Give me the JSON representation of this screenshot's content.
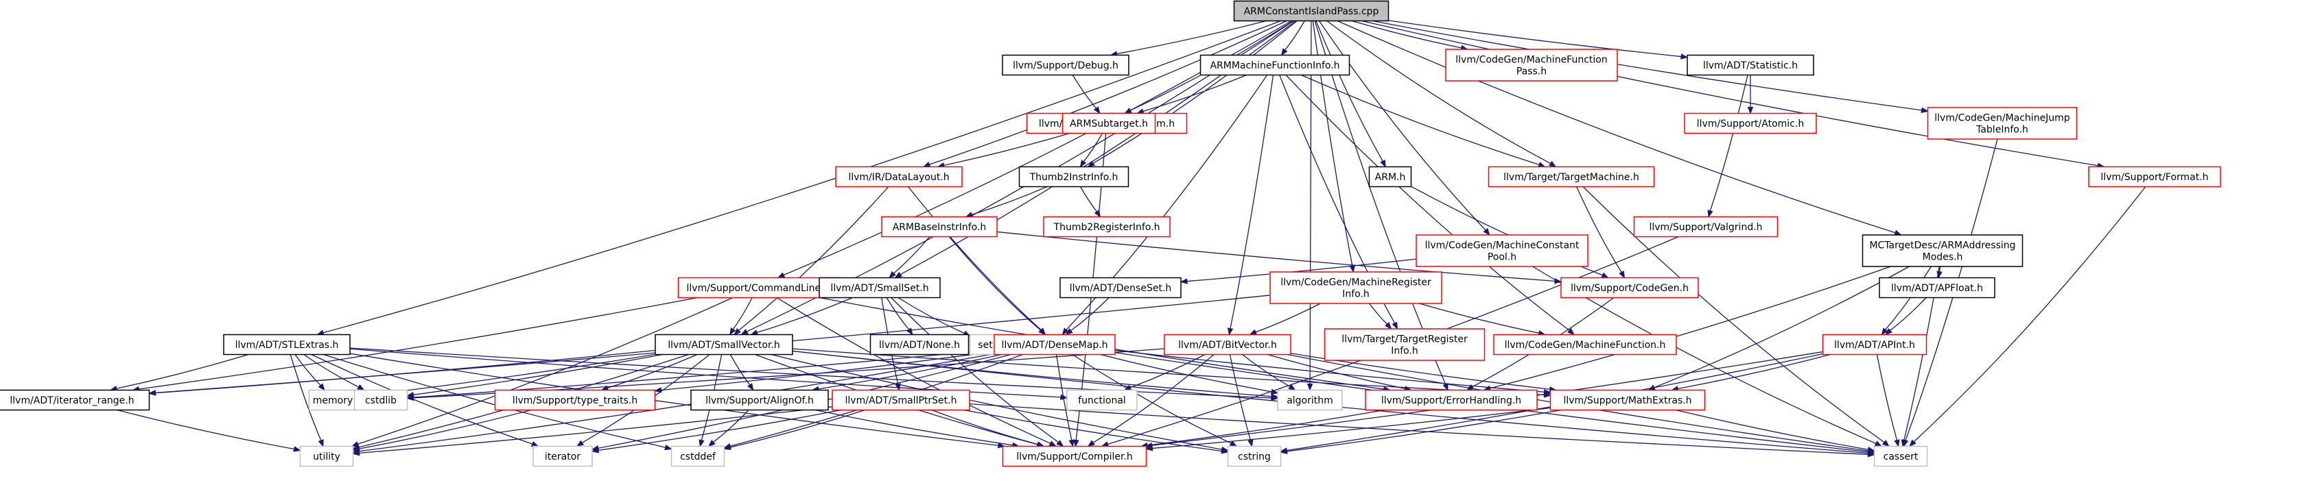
{
  "graph": {
    "colors": {
      "root_fill": "#bfbfbf",
      "header_border": "#000000",
      "missing_border": "#ff0000",
      "plain_border": "#bfbfbf",
      "edge": "#191970"
    },
    "nodes": [
      {
        "id": "root",
        "lines": [
          "ARMConstantIslandPass.cpp"
        ],
        "kind": "root"
      },
      {
        "id": "debug",
        "lines": [
          "llvm/Support/Debug.h"
        ],
        "kind": "header"
      },
      {
        "id": "armmfi",
        "lines": [
          "ARMMachineFunctionInfo.h"
        ],
        "kind": "header"
      },
      {
        "id": "mfpass",
        "lines": [
          "llvm/CodeGen/MachineFunction",
          "Pass.h"
        ],
        "kind": "missing"
      },
      {
        "id": "statistic",
        "lines": [
          "llvm/ADT/Statistic.h"
        ],
        "kind": "header"
      },
      {
        "id": "rawos",
        "lines": [
          "llvm/Support/raw_ostream.h"
        ],
        "kind": "missing"
      },
      {
        "id": "armsub",
        "lines": [
          "ARMSubtarget.h"
        ],
        "kind": "missing"
      },
      {
        "id": "atomic",
        "lines": [
          "llvm/Support/Atomic.h"
        ],
        "kind": "missing"
      },
      {
        "id": "mjti",
        "lines": [
          "llvm/CodeGen/MachineJump",
          "TableInfo.h"
        ],
        "kind": "missing"
      },
      {
        "id": "format",
        "lines": [
          "llvm/Support/Format.h"
        ],
        "kind": "missing"
      },
      {
        "id": "datalayout",
        "lines": [
          "llvm/IR/DataLayout.h"
        ],
        "kind": "missing"
      },
      {
        "id": "thumb2ii",
        "lines": [
          "Thumb2InstrInfo.h"
        ],
        "kind": "header"
      },
      {
        "id": "armh",
        "lines": [
          "ARM.h"
        ],
        "kind": "header"
      },
      {
        "id": "targetmachine",
        "lines": [
          "llvm/Target/TargetMachine.h"
        ],
        "kind": "missing"
      },
      {
        "id": "thumb2ri",
        "lines": [
          "Thumb2RegisterInfo.h"
        ],
        "kind": "missing"
      },
      {
        "id": "armbii",
        "lines": [
          "ARMBaseInstrInfo.h"
        ],
        "kind": "missing"
      },
      {
        "id": "mcpool",
        "lines": [
          "llvm/CodeGen/MachineConstant",
          "Pool.h"
        ],
        "kind": "missing"
      },
      {
        "id": "valgrind",
        "lines": [
          "llvm/Support/Valgrind.h"
        ],
        "kind": "missing"
      },
      {
        "id": "mcaddr",
        "lines": [
          "MCTargetDesc/ARMAddressing",
          "Modes.h"
        ],
        "kind": "header"
      },
      {
        "id": "cmdline",
        "lines": [
          "llvm/Support/CommandLine.h"
        ],
        "kind": "missing"
      },
      {
        "id": "smallset",
        "lines": [
          "llvm/ADT/SmallSet.h"
        ],
        "kind": "header"
      },
      {
        "id": "denseset",
        "lines": [
          "llvm/ADT/DenseSet.h"
        ],
        "kind": "header"
      },
      {
        "id": "mri",
        "lines": [
          "llvm/CodeGen/MachineRegister",
          "Info.h"
        ],
        "kind": "missing"
      },
      {
        "id": "codegen",
        "lines": [
          "llvm/Support/CodeGen.h"
        ],
        "kind": "missing"
      },
      {
        "id": "apfloat",
        "lines": [
          "llvm/ADT/APFloat.h"
        ],
        "kind": "header"
      },
      {
        "id": "stlextras",
        "lines": [
          "llvm/ADT/STLExtras.h"
        ],
        "kind": "header"
      },
      {
        "id": "smallvector",
        "lines": [
          "llvm/ADT/SmallVector.h"
        ],
        "kind": "header"
      },
      {
        "id": "none",
        "lines": [
          "llvm/ADT/None.h"
        ],
        "kind": "header"
      },
      {
        "id": "set",
        "lines": [
          "set"
        ],
        "kind": "plain"
      },
      {
        "id": "densemap",
        "lines": [
          "llvm/ADT/DenseMap.h"
        ],
        "kind": "missing"
      },
      {
        "id": "bitvector",
        "lines": [
          "llvm/ADT/BitVector.h"
        ],
        "kind": "missing"
      },
      {
        "id": "tri",
        "lines": [
          "llvm/Target/TargetRegister",
          "Info.h"
        ],
        "kind": "missing"
      },
      {
        "id": "mf",
        "lines": [
          "llvm/CodeGen/MachineFunction.h"
        ],
        "kind": "missing"
      },
      {
        "id": "apint",
        "lines": [
          "llvm/ADT/APInt.h"
        ],
        "kind": "missing"
      },
      {
        "id": "iterrange",
        "lines": [
          "llvm/ADT/iterator_range.h"
        ],
        "kind": "header"
      },
      {
        "id": "memory",
        "lines": [
          "memory"
        ],
        "kind": "plain"
      },
      {
        "id": "cstdlib",
        "lines": [
          "cstdlib"
        ],
        "kind": "plain"
      },
      {
        "id": "typetraits",
        "lines": [
          "llvm/Support/type_traits.h"
        ],
        "kind": "missing"
      },
      {
        "id": "alignof",
        "lines": [
          "llvm/Support/AlignOf.h"
        ],
        "kind": "header"
      },
      {
        "id": "smallptrset",
        "lines": [
          "llvm/ADT/SmallPtrSet.h"
        ],
        "kind": "missing"
      },
      {
        "id": "functional",
        "lines": [
          "functional"
        ],
        "kind": "plain"
      },
      {
        "id": "algorithm",
        "lines": [
          "algorithm"
        ],
        "kind": "plain"
      },
      {
        "id": "errorhandling",
        "lines": [
          "llvm/Support/ErrorHandling.h"
        ],
        "kind": "missing"
      },
      {
        "id": "mathextras",
        "lines": [
          "llvm/Support/MathExtras.h"
        ],
        "kind": "missing"
      },
      {
        "id": "utility",
        "lines": [
          "utility"
        ],
        "kind": "plain"
      },
      {
        "id": "iterator",
        "lines": [
          "iterator"
        ],
        "kind": "plain"
      },
      {
        "id": "cstddef",
        "lines": [
          "cstddef"
        ],
        "kind": "plain"
      },
      {
        "id": "compiler",
        "lines": [
          "llvm/Support/Compiler.h"
        ],
        "kind": "missing"
      },
      {
        "id": "cstring",
        "lines": [
          "cstring"
        ],
        "kind": "plain"
      },
      {
        "id": "cassert",
        "lines": [
          "cassert"
        ],
        "kind": "plain"
      }
    ],
    "edges": [
      [
        "root",
        "debug"
      ],
      [
        "root",
        "armmfi"
      ],
      [
        "root",
        "mfpass"
      ],
      [
        "root",
        "statistic"
      ],
      [
        "root",
        "rawos"
      ],
      [
        "root",
        "mjti"
      ],
      [
        "root",
        "format"
      ],
      [
        "root",
        "datalayout"
      ],
      [
        "root",
        "thumb2ii"
      ],
      [
        "root",
        "armh"
      ],
      [
        "root",
        "targetmachine"
      ],
      [
        "root",
        "mcpool"
      ],
      [
        "root",
        "mcaddr"
      ],
      [
        "root",
        "cmdline"
      ],
      [
        "root",
        "smallset"
      ],
      [
        "root",
        "mri"
      ],
      [
        "root",
        "stlextras"
      ],
      [
        "root",
        "smallvector"
      ],
      [
        "root",
        "algorithm"
      ],
      [
        "root",
        "errorhandling"
      ],
      [
        "debug",
        "rawos"
      ],
      [
        "armmfi",
        "armsub"
      ],
      [
        "armmfi",
        "targetmachine"
      ],
      [
        "armmfi",
        "densemap"
      ],
      [
        "armmfi",
        "bitvector"
      ],
      [
        "armmfi",
        "tri"
      ],
      [
        "armmfi",
        "mf"
      ],
      [
        "statistic",
        "atomic"
      ],
      [
        "statistic",
        "valgrind"
      ],
      [
        "rawos",
        "compiler"
      ],
      [
        "armsub",
        "armsub"
      ],
      [
        "armsub",
        "datalayout"
      ],
      [
        "armsub",
        "thumb2ii"
      ],
      [
        "mjti",
        "cassert"
      ],
      [
        "format",
        "cassert"
      ],
      [
        "datalayout",
        "smallvector"
      ],
      [
        "datalayout",
        "densemap"
      ],
      [
        "thumb2ii",
        "armbii"
      ],
      [
        "thumb2ii",
        "thumb2ri"
      ],
      [
        "armh",
        "codegen"
      ],
      [
        "targetmachine",
        "codegen"
      ],
      [
        "targetmachine",
        "cassert"
      ],
      [
        "armbii",
        "smallset"
      ],
      [
        "armbii",
        "densemap"
      ],
      [
        "armbii",
        "codegen"
      ],
      [
        "mcpool",
        "denseset"
      ],
      [
        "mcpool",
        "cassert"
      ],
      [
        "valgrind",
        "compiler"
      ],
      [
        "mcaddr",
        "apfloat"
      ],
      [
        "mcaddr",
        "apint"
      ],
      [
        "mcaddr",
        "errorhandling"
      ],
      [
        "mcaddr",
        "mathextras"
      ],
      [
        "mcaddr",
        "cassert"
      ],
      [
        "cmdline",
        "smallvector"
      ],
      [
        "cmdline",
        "iterrange"
      ],
      [
        "cmdline",
        "compiler"
      ],
      [
        "cmdline",
        "errorhandling"
      ],
      [
        "cmdline",
        "utility"
      ],
      [
        "smallset",
        "smallvector"
      ],
      [
        "smallset",
        "none"
      ],
      [
        "smallset",
        "set"
      ],
      [
        "smallset",
        "smallptrset"
      ],
      [
        "smallset",
        "compiler"
      ],
      [
        "denseset",
        "densemap"
      ],
      [
        "mri",
        "bitvector"
      ],
      [
        "mri",
        "tri"
      ],
      [
        "mri",
        "mf"
      ],
      [
        "mri",
        "iterrange"
      ],
      [
        "codegen",
        "errorhandling"
      ],
      [
        "apfloat",
        "apint"
      ],
      [
        "stlextras",
        "iterrange"
      ],
      [
        "stlextras",
        "cstdlib"
      ],
      [
        "stlextras",
        "memory"
      ],
      [
        "stlextras",
        "functional"
      ],
      [
        "stlextras",
        "utility"
      ],
      [
        "stlextras",
        "iterator"
      ],
      [
        "stlextras",
        "cstddef"
      ],
      [
        "stlextras",
        "compiler"
      ],
      [
        "stlextras",
        "algorithm"
      ],
      [
        "smallvector",
        "iterrange"
      ],
      [
        "smallvector",
        "memory"
      ],
      [
        "smallvector",
        "cstdlib"
      ],
      [
        "smallvector",
        "typetraits"
      ],
      [
        "smallvector",
        "alignof"
      ],
      [
        "smallvector",
        "mathextras"
      ],
      [
        "smallvector",
        "compiler"
      ],
      [
        "smallvector",
        "cstddef"
      ],
      [
        "smallvector",
        "iterator"
      ],
      [
        "smallvector",
        "algorithm"
      ],
      [
        "smallvector",
        "cstring"
      ],
      [
        "smallvector",
        "cassert"
      ],
      [
        "smallvector",
        "utility"
      ],
      [
        "densemap",
        "typetraits"
      ],
      [
        "densemap",
        "alignof"
      ],
      [
        "densemap",
        "mathextras"
      ],
      [
        "densemap",
        "compiler"
      ],
      [
        "densemap",
        "cstddef"
      ],
      [
        "densemap",
        "iterator"
      ],
      [
        "densemap",
        "algorithm"
      ],
      [
        "densemap",
        "cstring"
      ],
      [
        "densemap",
        "cassert"
      ],
      [
        "densemap",
        "utility"
      ],
      [
        "densemap",
        "cstdlib"
      ],
      [
        "bitvector",
        "functional"
      ],
      [
        "bitvector",
        "algorithm"
      ],
      [
        "bitvector",
        "errorhandling"
      ],
      [
        "bitvector",
        "mathextras"
      ],
      [
        "bitvector",
        "cstdlib"
      ],
      [
        "bitvector",
        "cstring"
      ],
      [
        "bitvector",
        "cassert"
      ],
      [
        "bitvector",
        "compiler"
      ],
      [
        "apint",
        "mathextras"
      ],
      [
        "apint",
        "compiler"
      ],
      [
        "apint",
        "cstring"
      ],
      [
        "apint",
        "cassert"
      ],
      [
        "iterrange",
        "utility"
      ],
      [
        "typetraits",
        "utility"
      ],
      [
        "alignof",
        "compiler"
      ],
      [
        "alignof",
        "cstddef"
      ],
      [
        "smallptrset",
        "compiler"
      ],
      [
        "smallptrset",
        "cstddef"
      ],
      [
        "smallptrset",
        "iterator"
      ],
      [
        "smallptrset",
        "utility"
      ],
      [
        "smallptrset",
        "cstring"
      ],
      [
        "smallptrset",
        "cassert"
      ],
      [
        "errorhandling",
        "compiler"
      ],
      [
        "mathextras",
        "compiler"
      ],
      [
        "mathextras",
        "cassert"
      ],
      [
        "mathextras",
        "cstring"
      ]
    ]
  }
}
